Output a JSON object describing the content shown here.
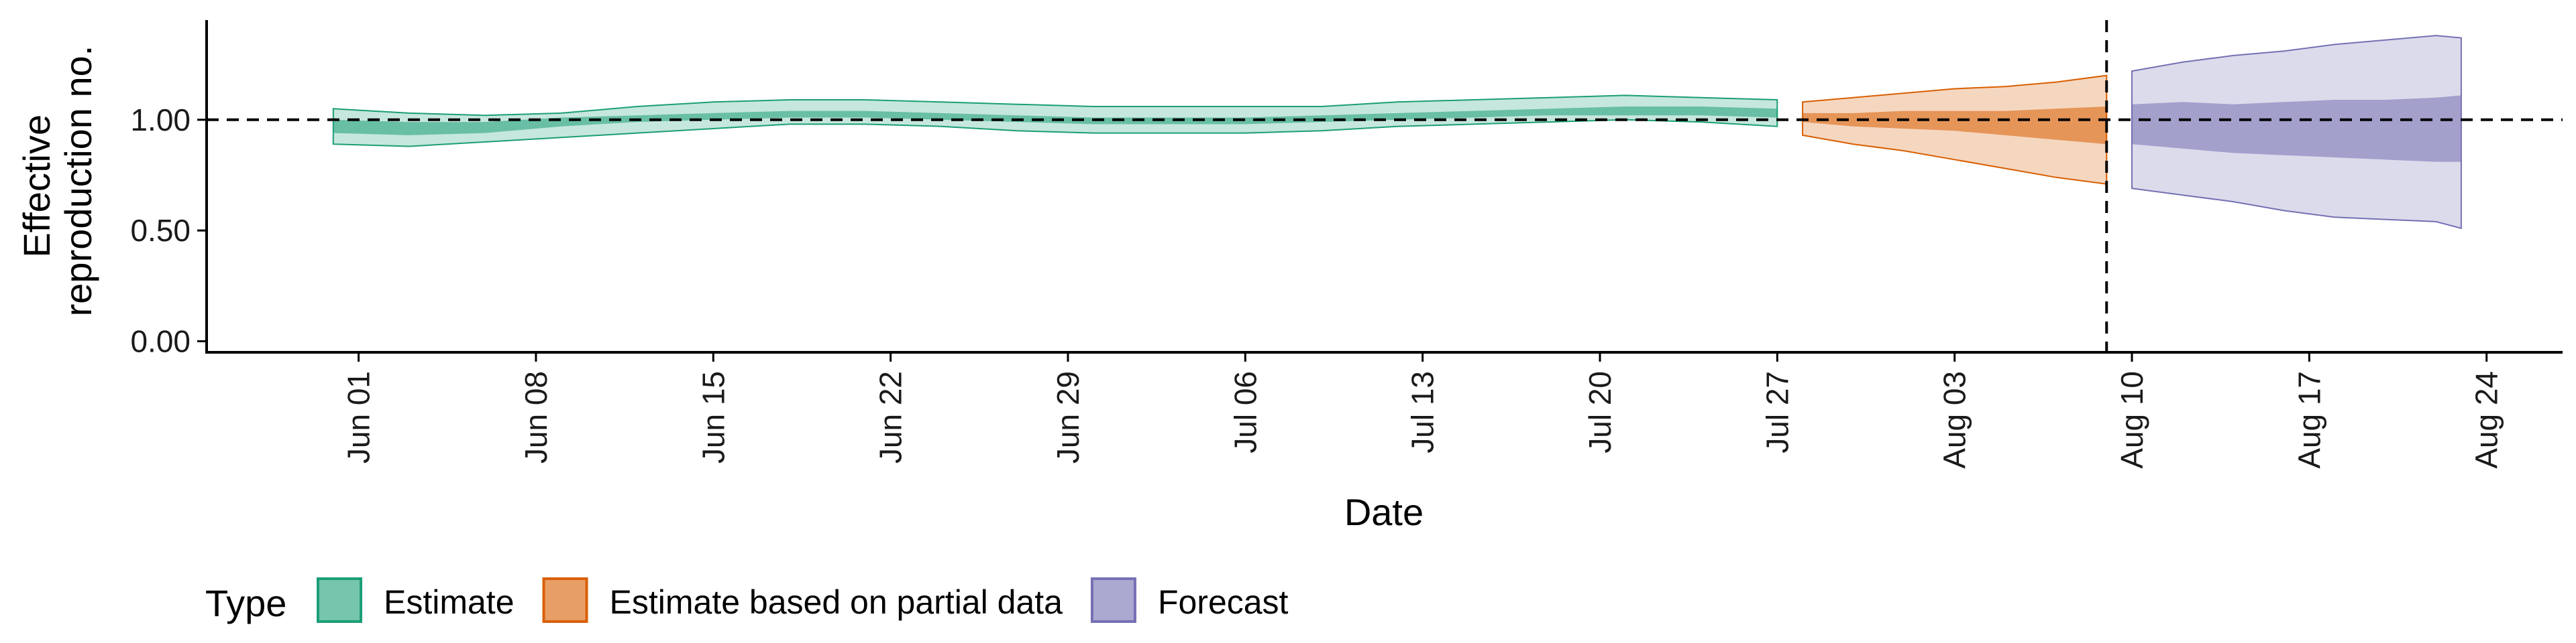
{
  "chart_data": {
    "type": "area",
    "title": "",
    "xlabel": "Date",
    "ylabel_lines": [
      "Effective",
      "reproduction no."
    ],
    "x_ticks": [
      "Jun 01",
      "Jun 08",
      "Jun 15",
      "Jun 22",
      "Jun 29",
      "Jul 06",
      "Jul 13",
      "Jul 20",
      "Jul 27",
      "Aug 03",
      "Aug 10",
      "Aug 17",
      "Aug 24"
    ],
    "y_ticks": [
      "0.00",
      "0.50",
      "1.00"
    ],
    "ylim": [
      -0.05,
      1.45
    ],
    "xlim": [
      "2020-05-26",
      "2020-08-27"
    ],
    "reference_line_y": 1.0,
    "forecast_start_date": "2020-08-09",
    "legend": {
      "title": "Type",
      "position": "bottom-left",
      "items": [
        "Estimate",
        "Estimate based on partial data",
        "Forecast"
      ]
    },
    "colors": {
      "Estimate": "#1b9e77",
      "Estimate based on partial data": "#d95f02",
      "Forecast": "#7570b3"
    },
    "series": [
      {
        "name": "Estimate",
        "x": [
          "2020-05-31",
          "2020-06-03",
          "2020-06-06",
          "2020-06-09",
          "2020-06-12",
          "2020-06-15",
          "2020-06-18",
          "2020-06-21",
          "2020-06-24",
          "2020-06-27",
          "2020-06-30",
          "2020-07-03",
          "2020-07-06",
          "2020-07-09",
          "2020-07-12",
          "2020-07-15",
          "2020-07-18",
          "2020-07-21",
          "2020-07-24",
          "2020-07-27"
        ],
        "median": [
          0.97,
          0.96,
          0.97,
          0.99,
          1.0,
          1.01,
          1.02,
          1.02,
          1.01,
          1.0,
          0.99,
          0.99,
          0.99,
          1.0,
          1.01,
          1.02,
          1.03,
          1.04,
          1.04,
          1.03
        ],
        "lower_50": [
          0.94,
          0.93,
          0.94,
          0.97,
          0.99,
          1.0,
          1.01,
          1.01,
          1.0,
          0.99,
          0.98,
          0.98,
          0.98,
          0.99,
          1.0,
          1.01,
          1.02,
          1.02,
          1.02,
          1.01
        ],
        "upper_50": [
          1.0,
          0.99,
          0.99,
          1.01,
          1.02,
          1.03,
          1.04,
          1.04,
          1.03,
          1.02,
          1.01,
          1.01,
          1.01,
          1.02,
          1.03,
          1.04,
          1.05,
          1.06,
          1.06,
          1.05
        ],
        "lower_90": [
          0.89,
          0.88,
          0.9,
          0.92,
          0.94,
          0.96,
          0.98,
          0.98,
          0.97,
          0.95,
          0.94,
          0.94,
          0.94,
          0.95,
          0.97,
          0.98,
          0.99,
          1.0,
          0.99,
          0.97
        ],
        "upper_90": [
          1.05,
          1.03,
          1.02,
          1.03,
          1.06,
          1.08,
          1.09,
          1.09,
          1.08,
          1.07,
          1.06,
          1.06,
          1.06,
          1.06,
          1.08,
          1.09,
          1.1,
          1.11,
          1.1,
          1.09
        ]
      },
      {
        "name": "Estimate based on partial data",
        "x": [
          "2020-07-28",
          "2020-07-30",
          "2020-08-01",
          "2020-08-03",
          "2020-08-05",
          "2020-08-07",
          "2020-08-09"
        ],
        "median": [
          1.01,
          1.0,
          1.0,
          0.99,
          0.98,
          0.98,
          0.97
        ],
        "lower_50": [
          0.99,
          0.97,
          0.96,
          0.95,
          0.93,
          0.91,
          0.89
        ],
        "upper_50": [
          1.03,
          1.03,
          1.04,
          1.04,
          1.04,
          1.05,
          1.06
        ],
        "lower_90": [
          0.93,
          0.89,
          0.86,
          0.82,
          0.78,
          0.74,
          0.71
        ],
        "upper_90": [
          1.08,
          1.1,
          1.12,
          1.14,
          1.15,
          1.17,
          1.2
        ]
      },
      {
        "name": "Forecast",
        "x": [
          "2020-08-10",
          "2020-08-12",
          "2020-08-14",
          "2020-08-16",
          "2020-08-18",
          "2020-08-20",
          "2020-08-22",
          "2020-08-23"
        ],
        "median": [
          0.97,
          0.97,
          0.96,
          0.96,
          0.96,
          0.96,
          0.96,
          0.96
        ],
        "lower_50": [
          0.89,
          0.87,
          0.85,
          0.84,
          0.83,
          0.82,
          0.81,
          0.81
        ],
        "upper_50": [
          1.07,
          1.08,
          1.07,
          1.08,
          1.09,
          1.09,
          1.1,
          1.11
        ],
        "lower_90": [
          0.69,
          0.66,
          0.63,
          0.59,
          0.56,
          0.55,
          0.54,
          0.51
        ],
        "upper_90": [
          1.22,
          1.26,
          1.29,
          1.31,
          1.34,
          1.36,
          1.38,
          1.37
        ]
      }
    ]
  }
}
